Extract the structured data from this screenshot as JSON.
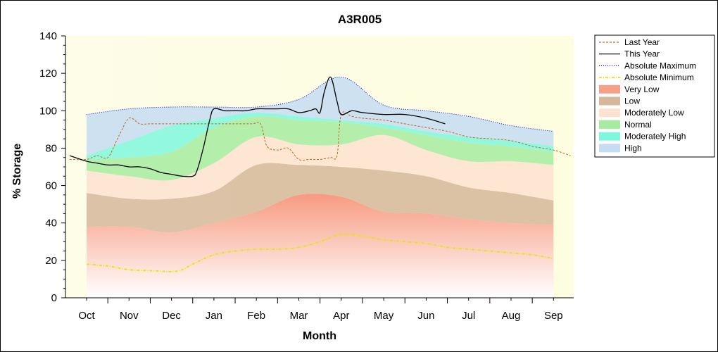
{
  "chart_data": {
    "type": "area",
    "title": "A3R005",
    "xlabel": "Month",
    "ylabel": "% Storage",
    "ylim": [
      0,
      140
    ],
    "yticks": [
      0,
      20,
      40,
      60,
      80,
      100,
      120,
      140
    ],
    "categories": [
      "Oct",
      "Nov",
      "Dec",
      "Jan",
      "Feb",
      "Mar",
      "Apr",
      "May",
      "Jun",
      "Jul",
      "Aug",
      "Sep"
    ],
    "legend_position": "right",
    "grid": false,
    "bands": [
      {
        "name": "Very Low",
        "color": "#f7a088",
        "lower": [
          0,
          0,
          0,
          0,
          0,
          0,
          0,
          0,
          0,
          0,
          0,
          0
        ],
        "upper": [
          38,
          38,
          35,
          40,
          46,
          55,
          54,
          46,
          45,
          42,
          40,
          39
        ]
      },
      {
        "name": "Low",
        "color": "#d6b79a",
        "lower": [
          38,
          38,
          35,
          40,
          46,
          55,
          54,
          46,
          45,
          42,
          40,
          39
        ],
        "upper": [
          56,
          53,
          53,
          57,
          71,
          71,
          70,
          68,
          65,
          59,
          56,
          52
        ]
      },
      {
        "name": "Moderately Low",
        "color": "#fde2cf",
        "lower": [
          56,
          53,
          53,
          57,
          71,
          71,
          70,
          68,
          65,
          59,
          56,
          52
        ],
        "upper": [
          68,
          65,
          63,
          72,
          86,
          82,
          82,
          87,
          79,
          73,
          73,
          71
        ]
      },
      {
        "name": "Normal",
        "color": "#a6eca0",
        "lower": [
          68,
          65,
          63,
          72,
          86,
          82,
          82,
          87,
          79,
          73,
          73,
          71
        ],
        "upper": [
          74,
          75,
          78,
          91,
          97,
          95,
          94,
          91,
          87,
          83,
          81,
          78
        ]
      },
      {
        "name": "Moderately High",
        "color": "#7ff7dc",
        "lower": [
          74,
          75,
          78,
          91,
          97,
          95,
          94,
          91,
          87,
          83,
          81,
          78
        ],
        "upper": [
          76,
          84,
          92,
          96,
          99,
          97,
          95,
          93,
          89,
          86,
          84,
          81
        ]
      },
      {
        "name": "High",
        "color": "#c5dcf2",
        "lower": [
          76,
          84,
          92,
          96,
          99,
          97,
          95,
          93,
          89,
          86,
          84,
          81
        ],
        "upper": [
          98,
          101,
          102,
          102,
          102,
          106,
          118,
          103,
          100,
          97,
          92,
          89
        ]
      }
    ],
    "series": [
      {
        "name": "Last Year",
        "color": "#c06a1c",
        "style": "dash",
        "x": [
          -0.4,
          0,
          0.25,
          0.5,
          0.75,
          1,
          1.25,
          1.5,
          2,
          2.5,
          3,
          3.5,
          3.9,
          4.1,
          4.25,
          4.5,
          4.75,
          5,
          5.25,
          5.5,
          5.75,
          5.9,
          6,
          6.25,
          6.5,
          7,
          7.5,
          8,
          8.5,
          9,
          9.5,
          10,
          10.5,
          11,
          11.4
        ],
        "y": [
          74,
          74,
          76,
          75,
          86,
          96,
          93,
          93,
          93,
          93,
          93,
          93,
          93,
          93,
          81,
          79,
          80,
          74,
          74,
          74,
          75,
          76,
          98,
          97,
          96,
          95,
          93,
          91,
          89,
          86,
          85,
          84,
          81,
          79,
          76
        ]
      },
      {
        "name": "This Year",
        "color": "#000000",
        "style": "solid",
        "x": [
          -0.4,
          0,
          0.25,
          0.5,
          0.75,
          1,
          1.25,
          1.5,
          1.75,
          2,
          2.25,
          2.5,
          2.6,
          2.75,
          2.9,
          3,
          3.25,
          3.5,
          3.75,
          4,
          4.25,
          4.5,
          4.75,
          5,
          5.25,
          5.4,
          5.5,
          5.6,
          5.75,
          5.9,
          6,
          6.25,
          6.5,
          7,
          7.5,
          8,
          8.45
        ],
        "y": [
          76,
          73,
          72,
          71,
          71,
          70,
          70,
          69,
          67,
          66,
          65,
          65,
          68,
          80,
          95,
          101,
          100,
          100,
          100,
          101,
          101,
          101,
          101,
          99,
          100,
          101,
          99,
          110,
          118,
          105,
          98,
          100,
          99,
          98,
          98,
          96,
          93
        ]
      },
      {
        "name": "Absolute Maximum",
        "color": "#0000cc",
        "style": "dotdash",
        "x": [],
        "y": []
      },
      {
        "name": "Absolute Minimum",
        "color": "#e6e600",
        "style": "dotdash",
        "x": [
          0,
          0.5,
          1,
          1.5,
          2,
          2.25,
          2.5,
          3,
          3.5,
          4,
          4.5,
          5,
          5.5,
          6,
          6.5,
          7,
          7.5,
          8,
          8.5,
          9,
          9.5,
          10,
          10.5,
          11
        ],
        "y": [
          18,
          17,
          15,
          14.5,
          14,
          15,
          18,
          23,
          25,
          26,
          26,
          27,
          30,
          34,
          33,
          31,
          30,
          29,
          27,
          26,
          25,
          24,
          23,
          21
        ]
      }
    ]
  }
}
